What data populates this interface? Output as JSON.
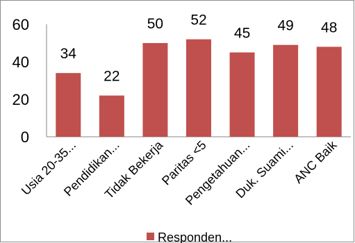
{
  "chart_data": {
    "type": "bar",
    "categories": [
      "Usia 20-35...",
      "Pendidikan...",
      "Tidak Bekerja",
      "Paritas <5",
      "Pengetahuan...",
      "Duk. Suami...",
      "ANC Baik"
    ],
    "series": [
      {
        "name": "Responden...",
        "values": [
          34,
          22,
          50,
          52,
          45,
          49,
          48
        ]
      }
    ],
    "ylim": [
      0,
      60
    ],
    "yticks": [
      0,
      20,
      40,
      60
    ],
    "grid": false,
    "legend": "bottom",
    "bar_color": "#c0504d",
    "axis_color": "#868686"
  }
}
